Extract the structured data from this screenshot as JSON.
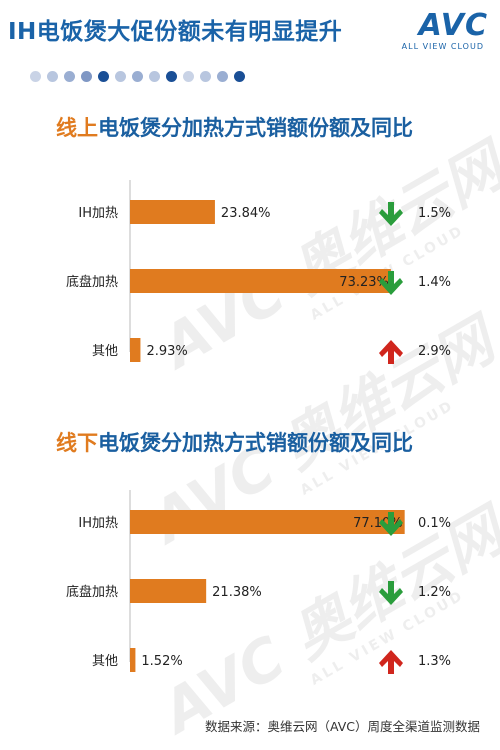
{
  "header": {
    "title": "IH电饭煲大促份额未有明显提升",
    "logo_mark": "AVC",
    "logo_sub": "ALL VIEW CLOUD"
  },
  "progress_dots": {
    "count": 13,
    "colors": [
      "#c9d3e6",
      "#b8c6df",
      "#9aaed2",
      "#7f97c4",
      "#1a4f96",
      "#b8c6df",
      "#9aaed2",
      "#b8c6df",
      "#1a4f96",
      "#c9d3e6",
      "#b8c6df",
      "#9aaed2",
      "#1a4f96"
    ]
  },
  "watermark": {
    "big": "AVC 奥维云网",
    "small": "ALL VIEW CLOUD"
  },
  "colors": {
    "bar": "#e07b1f",
    "down_arrow": "#2a9d3c",
    "up_arrow": "#d0261d",
    "title_blue": "#1a5fa0",
    "title_orange": "#e07b1f"
  },
  "chart_data": [
    {
      "type": "bar",
      "orientation": "horizontal",
      "title_highlight": "线上",
      "title_rest": "电饭煲分加热方式销额份额及同比",
      "categories": [
        "IH加热",
        "底盘加热",
        "其他"
      ],
      "values": [
        23.84,
        73.23,
        2.93
      ],
      "value_labels": [
        "23.84%",
        "73.23%",
        "2.93%"
      ],
      "yoy": [
        {
          "direction": "down",
          "label": "1.5%"
        },
        {
          "direction": "down",
          "label": "1.4%"
        },
        {
          "direction": "up",
          "label": "2.9%"
        }
      ],
      "xlim": [
        0,
        80
      ]
    },
    {
      "type": "bar",
      "orientation": "horizontal",
      "title_highlight": "线下",
      "title_rest": "电饭煲分加热方式销额份额及同比",
      "categories": [
        "IH加热",
        "底盘加热",
        "其他"
      ],
      "values": [
        77.1,
        21.38,
        1.52
      ],
      "value_labels": [
        "77.10%",
        "21.38%",
        "1.52%"
      ],
      "yoy": [
        {
          "direction": "down",
          "label": "0.1%"
        },
        {
          "direction": "down",
          "label": "1.2%"
        },
        {
          "direction": "up",
          "label": "1.3%"
        }
      ],
      "xlim": [
        0,
        80
      ]
    }
  ],
  "footer": {
    "source": "数据来源：奥维云网（AVC）周度全渠道监测数据"
  }
}
